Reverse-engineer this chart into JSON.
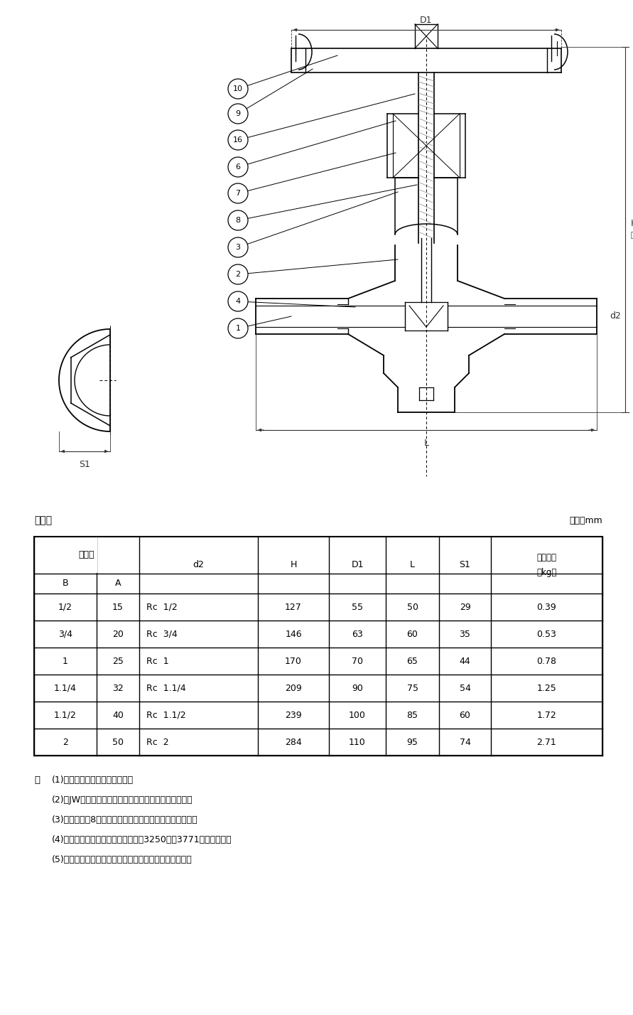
{
  "bg_color": "#ffffff",
  "table_title_left": "寸法表",
  "table_title_right": "単位：mm",
  "col_headers_row1": [
    "呼び径",
    "d2",
    "H",
    "D1",
    "L",
    "S1",
    "概算質量\n（kg）"
  ],
  "col_headers_row2": [
    "B",
    "A"
  ],
  "data_rows": [
    [
      "1/2",
      "15",
      "Rc  1/2",
      "127",
      "55",
      "50",
      "29",
      "0.39"
    ],
    [
      "3/4",
      "20",
      "Rc  3/4",
      "146",
      "63",
      "60",
      "35",
      "0.53"
    ],
    [
      "1",
      "25",
      "Rc  1",
      "170",
      "70",
      "65",
      "44",
      "0.78"
    ],
    [
      "1.1/4",
      "32",
      "Rc  1.1/4",
      "209",
      "90",
      "75",
      "54",
      "1.25"
    ],
    [
      "1.1/2",
      "40",
      "Rc  1.1/2",
      "239",
      "100",
      "85",
      "60",
      "1.72"
    ],
    [
      "2",
      "50",
      "Rc  2",
      "284",
      "110",
      "95",
      "74",
      "2.71"
    ]
  ],
  "notes_header": "注",
  "notes": [
    "(1)　呼び径を表わしています．",
    "(2)　JWは、ＪＩＳ認証機関の略号を表わしています．",
    "(3)　スパナ掛8角面に製造工場の略号を表わしています．",
    "(4)　引張強さと伸びは、ＪＩＳ　Ｈ3250のＣ3771と同等以上．",
    "(5)　可燃性ガス・毒性ガスには使用しないでください．"
  ],
  "part_numbers": [
    "10",
    "9",
    "16",
    "6",
    "7",
    "8",
    "3",
    "2",
    "4",
    "1"
  ],
  "font_family": "IPAGothic"
}
